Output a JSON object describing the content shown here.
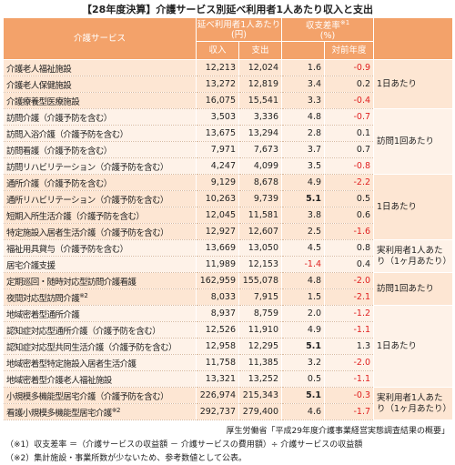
{
  "title": "【28年度決算】介護サービス別延べ利用者1人あたり収入と支出",
  "table": {
    "header": {
      "service": "介護サービス",
      "per_user": "延べ利用者1人あたり",
      "per_user_unit": "(円)",
      "income": "収入",
      "expense": "支出",
      "margin": "収支差率",
      "margin_note": "※1",
      "margin_unit": "(%)",
      "yoy": "対前年度"
    },
    "groups": [
      {
        "unit": "1日あたり",
        "rows": [
          {
            "service": "介護老人福祉施設",
            "income": "12,213",
            "expense": "12,024",
            "margin": "1.6",
            "yoy": "-0.9"
          },
          {
            "service": "介護老人保健施設",
            "income": "13,272",
            "expense": "12,819",
            "margin": "3.4",
            "yoy": "0.2"
          },
          {
            "service": "介護療養型医療施設",
            "income": "16,075",
            "expense": "15,541",
            "margin": "3.3",
            "yoy": "-0.4"
          }
        ]
      },
      {
        "unit": "訪問1回あたり",
        "rows": [
          {
            "service": "訪問介護（介護予防を含む）",
            "income": "3,503",
            "expense": "3,336",
            "margin": "4.8",
            "yoy": "-0.7"
          },
          {
            "service": "訪問入浴介護（介護予防を含む）",
            "income": "13,675",
            "expense": "13,294",
            "margin": "2.8",
            "yoy": "0.1"
          },
          {
            "service": "訪問看護（介護予防を含む）",
            "income": "7,971",
            "expense": "7,673",
            "margin": "3.7",
            "yoy": "0.7"
          },
          {
            "service": "訪問リハビリテーション（介護予防を含む）",
            "income": "4,247",
            "expense": "4,099",
            "margin": "3.5",
            "yoy": "-0.8"
          }
        ]
      },
      {
        "unit": "1日あたり",
        "rows": [
          {
            "service": "通所介護（介護予防を含む）",
            "income": "9,129",
            "expense": "8,678",
            "margin": "4.9",
            "yoy": "-2.2"
          },
          {
            "service": "通所リハビリテーション（介護予防を含む）",
            "income": "10,263",
            "expense": "9,739",
            "margin": "5.1",
            "yoy": "0.5",
            "bold_margin": true
          },
          {
            "service": "短期入所生活介護（介護予防を含む）",
            "income": "12,045",
            "expense": "11,581",
            "margin": "3.8",
            "yoy": "0.6"
          },
          {
            "service": "特定施設入居者生活介護（介護予防を含む）",
            "income": "12,927",
            "expense": "12,607",
            "margin": "2.5",
            "yoy": "-1.6"
          }
        ]
      },
      {
        "unit": "実利用者1人あたり（1ヶ月あたり）",
        "rows": [
          {
            "service": "福祉用具貸与（介護予防を含む）",
            "income": "13,669",
            "expense": "13,050",
            "margin": "4.5",
            "yoy": "0.8"
          },
          {
            "service": "居宅介護支援",
            "income": "11,989",
            "expense": "12,153",
            "margin": "-1.4",
            "yoy": "0.4"
          }
        ]
      },
      {
        "unit": "訪問1回あたり",
        "rows": [
          {
            "service": "定期巡回・随時対応型訪問介護看護",
            "income": "162,959",
            "expense": "155,078",
            "margin": "4.8",
            "yoy": "-2.0"
          },
          {
            "service": "夜間対応型訪問介護",
            "note": "※2",
            "income": "8,033",
            "expense": "7,915",
            "margin": "1.5",
            "yoy": "-2.1"
          }
        ]
      },
      {
        "unit": "1日あたり",
        "rows": [
          {
            "service": "地域密着型通所介護",
            "income": "8,937",
            "expense": "8,759",
            "margin": "2.0",
            "yoy": "-1.2"
          },
          {
            "service": "認知症対応型通所介護（介護予防を含む）",
            "income": "12,526",
            "expense": "11,910",
            "margin": "4.9",
            "yoy": "-1.1"
          },
          {
            "service": "認知症対応型共同生活介護（介護予防を含む）",
            "income": "12,958",
            "expense": "12,295",
            "margin": "5.1",
            "yoy": "1.3",
            "bold_margin": true
          },
          {
            "service": "地域密着型特定施設入居者生活介護",
            "income": "11,758",
            "expense": "11,385",
            "margin": "3.2",
            "yoy": "-2.0"
          },
          {
            "service": "地域密着型介護老人福祉施設",
            "income": "13,321",
            "expense": "13,252",
            "margin": "0.5",
            "yoy": "-1.1"
          }
        ]
      },
      {
        "unit": "実利用者1人あたり（1ヶ月あたり）",
        "rows": [
          {
            "service": "小規模多機能型居宅介護（介護予防を含む）",
            "income": "226,974",
            "expense": "215,343",
            "margin": "5.1",
            "yoy": "-0.3",
            "bold_margin": true
          },
          {
            "service": "看護小規模多機能型居宅介護",
            "note": "※2",
            "income": "292,737",
            "expense": "279,400",
            "margin": "4.6",
            "yoy": "-1.7"
          }
        ]
      }
    ]
  },
  "source": "厚生労働省「平成29年度介護事業経営実態調査結果の概要」",
  "notes": [
    "（※1）収支差率 ＝（介護サービスの収益額 － 介護サービスの費用額）÷ 介護サービスの収益額",
    "（※2）集計施設・事業所数が少ないため、参考数値として公表。"
  ]
}
